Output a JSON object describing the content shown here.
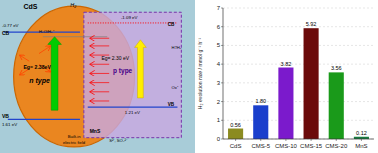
{
  "chart_data": {
    "type": "bar",
    "categories": [
      "CdS",
      "CMS-5",
      "CMS-10",
      "CMS-15",
      "CMS-20",
      "MnS"
    ],
    "values": [
      0.56,
      1.8,
      3.82,
      5.92,
      3.56,
      0.12
    ],
    "value_labels": [
      "0.56",
      "1.80",
      "3.82",
      "5.92",
      "3.56",
      "0.12"
    ],
    "colors": [
      "#8b8b20",
      "#1a3fcc",
      "#7b1acc",
      "#6b0a0a",
      "#1a9a1a",
      "#1a7a40"
    ],
    "ylabel": "H₂ evolution rate / mmol g⁻¹ h⁻¹",
    "ylim": [
      0,
      7
    ],
    "yticks": [
      0,
      1,
      2,
      3,
      4,
      5,
      6,
      7
    ],
    "grid": true,
    "data_labels": true,
    "annotations": [
      "CdS",
      "n type",
      "Eg= 2.38eV",
      "p type",
      "Eg= 2.30 eV",
      "-0.77 eV",
      "CB",
      "1.61 eV",
      "VB",
      "-1.09 eV",
      "CB",
      "1.21 eV",
      "VB",
      "H₂O/H₂⁺",
      "H⁺/H₂",
      "Ox⁺",
      "S²⁻, SO₄²⁻",
      "MnS",
      "Built-in\nelectric field",
      "H₂"
    ]
  }
}
